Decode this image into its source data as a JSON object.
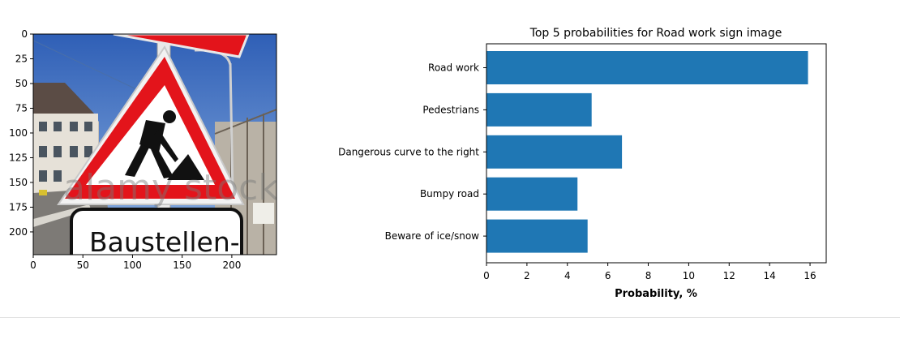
{
  "chart_data": [
    {
      "type": "image",
      "xlim": [
        0,
        245
      ],
      "ylim": [
        223,
        0
      ],
      "xticks": [
        0,
        50,
        100,
        150,
        200
      ],
      "yticks": [
        0,
        25,
        50,
        75,
        100,
        125,
        150,
        175,
        200
      ],
      "image_text": {
        "sign_plate": "Baustellen-",
        "watermark": "alamy stock"
      }
    },
    {
      "type": "bar",
      "orientation": "horizontal",
      "title": "Top 5 probabilities for Road work sign image",
      "xlabel": "Probability, %",
      "ylabel": "",
      "categories": [
        "Road work",
        "Pedestrians",
        "Dangerous curve to the right",
        "Bumpy road",
        "Beware of ice/snow"
      ],
      "values": [
        15.9,
        5.2,
        6.7,
        4.5,
        5.0
      ],
      "xlim": [
        0,
        16.8
      ],
      "xticks": [
        0,
        2,
        4,
        6,
        8,
        10,
        12,
        14,
        16
      ],
      "bar_color": "#1f77b4",
      "grid": false
    }
  ]
}
